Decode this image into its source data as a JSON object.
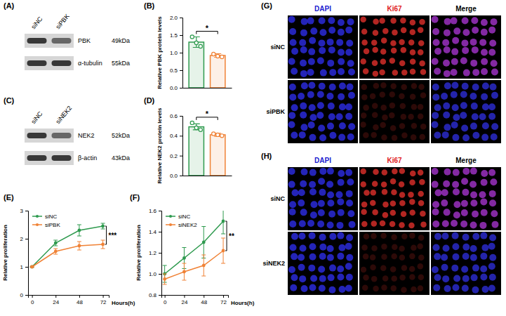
{
  "chart_data": [
    {
      "panel": "(A)",
      "type": "blot",
      "lanes": [
        "siNC",
        "siPBK"
      ],
      "rows": [
        {
          "name": "PBK",
          "size": "49kDa"
        },
        {
          "name": "α-tubulin",
          "size": "55kDa"
        }
      ]
    },
    {
      "panel": "(B)",
      "type": "bar",
      "categories": [
        null,
        null
      ],
      "values": [
        1.3,
        0.92
      ],
      "errors": [
        0.15,
        0.05
      ],
      "points": [
        [
          1.45,
          1.28,
          1.18
        ],
        [
          0.96,
          0.9,
          0.88
        ]
      ],
      "colors": [
        "#2e9a4e",
        "#f08236"
      ],
      "ylim": [
        0,
        2
      ],
      "yticks": [
        {
          "value": 0,
          "label": "0.0"
        },
        0.5,
        {
          "value": 1,
          "label": "1.0"
        },
        1.5,
        {
          "value": 2,
          "label": "2.0"
        }
      ],
      "y_label": "Relative PBK protein levels",
      "annotations": [
        "*"
      ]
    },
    {
      "panel": "(C)",
      "type": "blot",
      "lanes": [
        "siNC",
        "siNEK2"
      ],
      "rows": [
        {
          "name": "NEK2",
          "size": "52kDa"
        },
        {
          "name": "β-actin",
          "size": "43kDa"
        }
      ]
    },
    {
      "panel": "(D)",
      "type": "bar",
      "categories": [
        null,
        null
      ],
      "values": [
        0.49,
        0.41
      ],
      "errors": [
        0.03,
        0.015
      ],
      "points": [
        [
          0.53,
          0.48,
          0.46
        ],
        [
          0.42,
          0.41,
          0.4
        ]
      ],
      "colors": [
        "#2e9a4e",
        "#f08236"
      ],
      "ylim": [
        0,
        0.6
      ],
      "yticks": [
        {
          "value": 0,
          "label": "0.0"
        },
        0.2,
        0.4,
        0.6
      ],
      "y_label": "Relative NEK2 protein levels",
      "annotations": [
        "*"
      ]
    },
    {
      "panel": "(E)",
      "type": "line",
      "x": [
        0,
        24,
        48,
        72
      ],
      "series": [
        {
          "name": "siNC",
          "color": "#2e9a4e",
          "marker": "circle",
          "values": [
            1.0,
            1.85,
            2.3,
            2.45
          ],
          "errors": [
            0.02,
            0.1,
            0.2,
            0.1
          ]
        },
        {
          "name": "siPBK",
          "color": "#f08236",
          "marker": "circle",
          "values": [
            1.0,
            1.55,
            1.75,
            1.8
          ],
          "errors": [
            0.02,
            0.1,
            0.15,
            0.15
          ]
        }
      ],
      "xlim": [
        -4,
        78
      ],
      "xticks": [
        0,
        24,
        48,
        72
      ],
      "ylim": [
        0,
        3
      ],
      "yticks": [
        0,
        1,
        2,
        3
      ],
      "x_label": "Hours(h)",
      "y_label": "Relative proliferation",
      "annotations": [
        "***"
      ],
      "legend": "top-left"
    },
    {
      "panel": "(F)",
      "type": "line",
      "x": [
        0,
        24,
        48,
        72
      ],
      "series": [
        {
          "name": "siNC",
          "color": "#2e9a4e",
          "marker": "circle",
          "values": [
            1.0,
            1.15,
            1.3,
            1.5
          ],
          "errors": [
            0.08,
            0.1,
            0.15,
            0.12
          ]
        },
        {
          "name": "siNEK2",
          "color": "#f08236",
          "marker": "circle",
          "values": [
            0.95,
            1.02,
            1.08,
            1.22
          ],
          "errors": [
            0.05,
            0.08,
            0.1,
            0.12
          ]
        }
      ],
      "xlim": [
        -4,
        78
      ],
      "xticks": [
        0,
        24,
        48,
        72
      ],
      "ylim": [
        0.8,
        1.6
      ],
      "yticks": [
        0.8,
        {
          "value": 1,
          "label": "1.0"
        },
        1.2,
        1.4,
        1.6
      ],
      "x_label": "Hours(h)",
      "y_label": "Relative proliferation",
      "annotations": [
        "**"
      ],
      "legend": "top-left"
    },
    {
      "panel": "(G)",
      "type": "image",
      "columns": [
        "DAPI",
        "Ki67",
        "Merge"
      ],
      "rows": [
        "siNC",
        "siPBK"
      ]
    },
    {
      "panel": "(H)",
      "type": "image",
      "columns": [
        "DAPI",
        "Ki67",
        "Merge"
      ],
      "rows": [
        "siNC",
        "siNEK2"
      ]
    }
  ]
}
